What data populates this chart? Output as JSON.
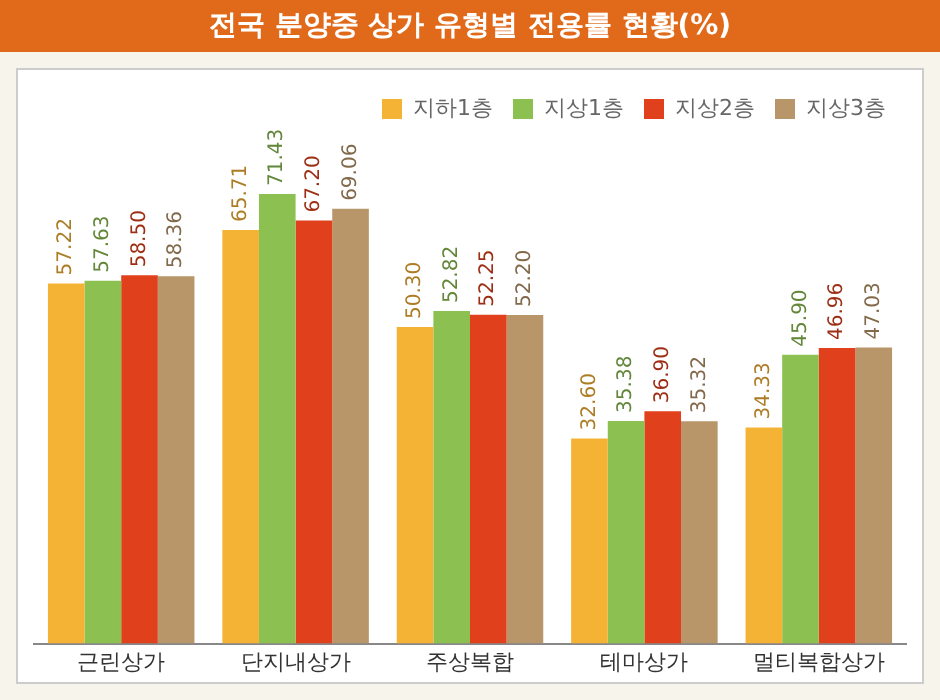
{
  "chart_data": {
    "type": "bar",
    "title": "전국 분양중 상가 유형별 전용률 현황(%)",
    "categories": [
      "근린상가",
      "단지내상가",
      "주상복합",
      "테마상가",
      "멀티복합상가"
    ],
    "series": [
      {
        "name": "지하1층",
        "color": "#f5b335",
        "values": [
          57.22,
          65.71,
          50.3,
          32.6,
          34.33
        ],
        "value_labels": [
          "57.22",
          "65.71",
          "50.30",
          "32.60",
          "34.33"
        ]
      },
      {
        "name": "지상1층",
        "color": "#8cc152",
        "values": [
          57.63,
          71.43,
          52.82,
          35.38,
          45.9
        ],
        "value_labels": [
          "57.63",
          "71.43",
          "52.82",
          "35.38",
          "45.90"
        ]
      },
      {
        "name": "지상2층",
        "color": "#e0411c",
        "values": [
          58.5,
          67.2,
          52.25,
          36.9,
          46.96
        ],
        "value_labels": [
          "58.50",
          "67.20",
          "52.25",
          "36.90",
          "46.96"
        ]
      },
      {
        "name": "지상3층",
        "color": "#b8966a",
        "values": [
          58.36,
          69.06,
          52.2,
          35.32,
          47.03
        ],
        "value_labels": [
          "58.36",
          "69.06",
          "52.20",
          "35.32",
          "47.03"
        ]
      }
    ],
    "legend": "top right",
    "grid": false
  }
}
